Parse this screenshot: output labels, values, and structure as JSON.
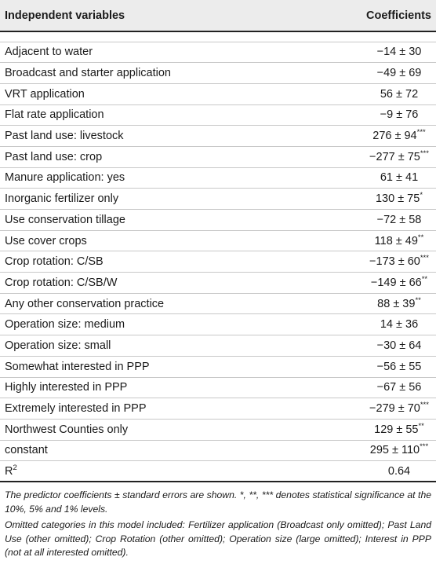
{
  "table": {
    "headers": {
      "variable": "Independent variables",
      "coefficient": "Coefficients"
    },
    "rows": [
      {
        "variable": "Adjacent to water",
        "value": "−14 ± 30",
        "sig": ""
      },
      {
        "variable": "Broadcast and starter application",
        "value": "−49 ± 69",
        "sig": ""
      },
      {
        "variable": "VRT application",
        "value": "56 ± 72",
        "sig": ""
      },
      {
        "variable": "Flat rate application",
        "value": "−9 ± 76",
        "sig": ""
      },
      {
        "variable": "Past land use: livestock",
        "value": "276 ± 94",
        "sig": "***"
      },
      {
        "variable": "Past land use: crop",
        "value": "−277 ± 75",
        "sig": "***"
      },
      {
        "variable": "Manure application: yes",
        "value": "61 ± 41",
        "sig": ""
      },
      {
        "variable": "Inorganic fertilizer only",
        "value": "130 ± 75",
        "sig": "*"
      },
      {
        "variable": "Use conservation tillage",
        "value": "−72 ± 58",
        "sig": ""
      },
      {
        "variable": "Use cover crops",
        "value": "118 ± 49",
        "sig": "**"
      },
      {
        "variable": "Crop rotation: C/SB",
        "value": "−173 ± 60",
        "sig": "***"
      },
      {
        "variable": "Crop rotation: C/SB/W",
        "value": "−149 ± 66",
        "sig": "**"
      },
      {
        "variable": "Any other conservation practice",
        "value": "88 ± 39",
        "sig": "**"
      },
      {
        "variable": "Operation size: medium",
        "value": "14 ± 36",
        "sig": ""
      },
      {
        "variable": "Operation size: small",
        "value": "−30 ± 64",
        "sig": ""
      },
      {
        "variable": "Somewhat interested in PPP",
        "value": "−56 ± 55",
        "sig": ""
      },
      {
        "variable": "Highly interested in PPP",
        "value": "−67 ± 56",
        "sig": ""
      },
      {
        "variable": "Extremely interested in PPP",
        "value": "−279 ± 70",
        "sig": "***"
      },
      {
        "variable": "Northwest Counties only",
        "value": "129 ± 55",
        "sig": "**"
      },
      {
        "variable": "constant",
        "value": "295 ± 110",
        "sig": "***"
      }
    ],
    "r2": {
      "label": "R",
      "label_sup": "2",
      "value": "0.64"
    }
  },
  "notes": {
    "note1": "The predictor coefficients ± standard errors are shown. *, **, *** denotes statistical significance at the 10%, 5% and 1% levels.",
    "note2": "Omitted categories in this model included: Fertilizer application (Broadcast only omitted); Past Land Use (other omitted); Crop Rotation (other omitted); Operation size (large omitted); Interest in PPP (not at all interested omitted)."
  }
}
